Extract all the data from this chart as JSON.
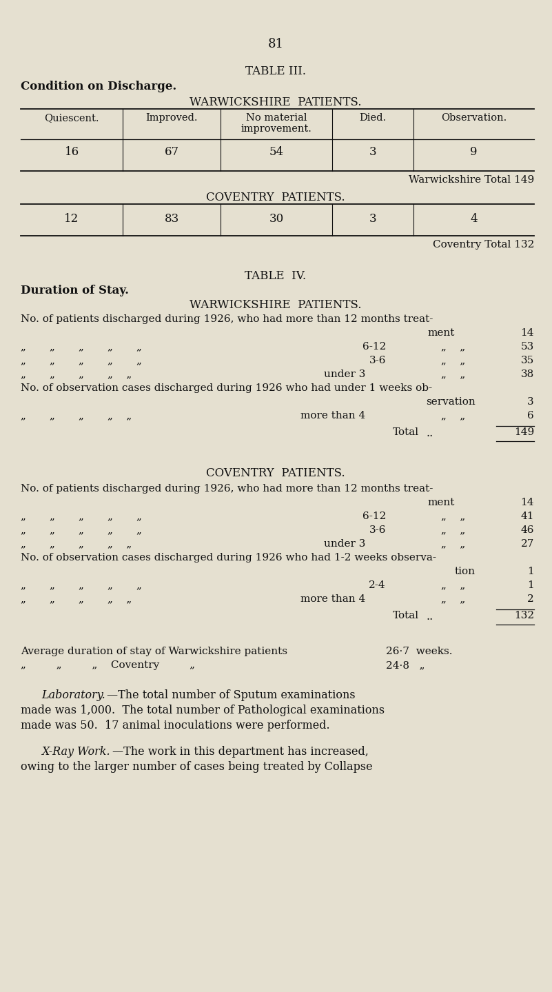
{
  "bg_color": "#e5e0d0",
  "text_color": "#111111",
  "page_number": "81",
  "table3_title": "TABLE III.",
  "table3_subtitle_left": "Condition on Discharge.",
  "table3_w_title": "WARWICKSHIRE  PATIENTS.",
  "table3_headers": [
    "Quiescent.",
    "Improved.",
    "No material\nimprovement.",
    "Died.",
    "Observation."
  ],
  "table3_row1": [
    "16",
    "67",
    "54",
    "3",
    "9"
  ],
  "table3_w_total": "Warwickshire Total 149",
  "table3_c_title": "COVENTRY  PATIENTS.",
  "table3_row2": [
    "12",
    "83",
    "30",
    "3",
    "4"
  ],
  "table3_c_total": "Coventry Total 132",
  "table4_title": "TABLE  IV.",
  "table4_subtitle": "Duration of Stay.",
  "table4_w_title": "WARWICKSHIRE  PATIENTS.",
  "table4_c_title": "COVENTRY  PATIENTS.",
  "avg_w_label": "Average duration of stay of Warwickshire patients",
  "avg_w_val": "26·7  weeks.",
  "avg_c_prefix": "„         „         „    Coventry         „",
  "avg_c_val": "24·8   „"
}
